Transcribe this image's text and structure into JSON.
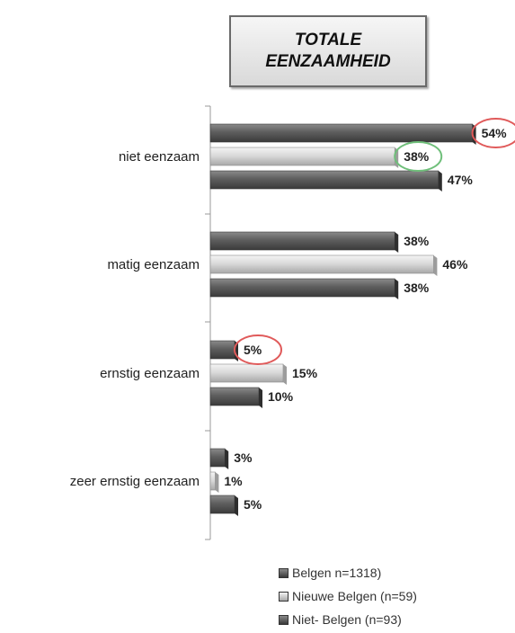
{
  "title_line1": "TOTALE",
  "title_line2": "EENZAAMHEID",
  "colors": {
    "dark": "#5e5e5e",
    "light": "#d8d8d8",
    "highlight_red": "#e05a5a",
    "highlight_green": "#6fbf7a"
  },
  "chart_data": {
    "type": "bar",
    "orientation": "horizontal",
    "categories": [
      "niet eenzaam",
      "matig eenzaam",
      "ernstig eenzaam",
      "zeer ernstig eenzaam"
    ],
    "series": [
      {
        "name": "Belgen n=1318)",
        "values": [
          54,
          38,
          5,
          3
        ],
        "labels": [
          "54%",
          "38%",
          "5%",
          "3%"
        ],
        "color": "#5e5e5e"
      },
      {
        "name": "Nieuwe Belgen (n=59)",
        "values": [
          38,
          46,
          15,
          1
        ],
        "labels": [
          "38%",
          "46%",
          "15%",
          "1%"
        ],
        "color": "#d8d8d8"
      },
      {
        "name": "Niet- Belgen (n=93)",
        "values": [
          47,
          38,
          10,
          5
        ],
        "labels": [
          "47%",
          "38%",
          "10%",
          "5%"
        ],
        "color": "#5e5e5e"
      }
    ],
    "highlights": [
      {
        "category": 0,
        "series": 0,
        "color": "red"
      },
      {
        "category": 0,
        "series": 1,
        "color": "green"
      },
      {
        "category": 2,
        "series": 0,
        "color": "red"
      }
    ],
    "title": "TOTALE EENZAAMHEID",
    "legend_position": "bottom-right",
    "grid": false
  }
}
